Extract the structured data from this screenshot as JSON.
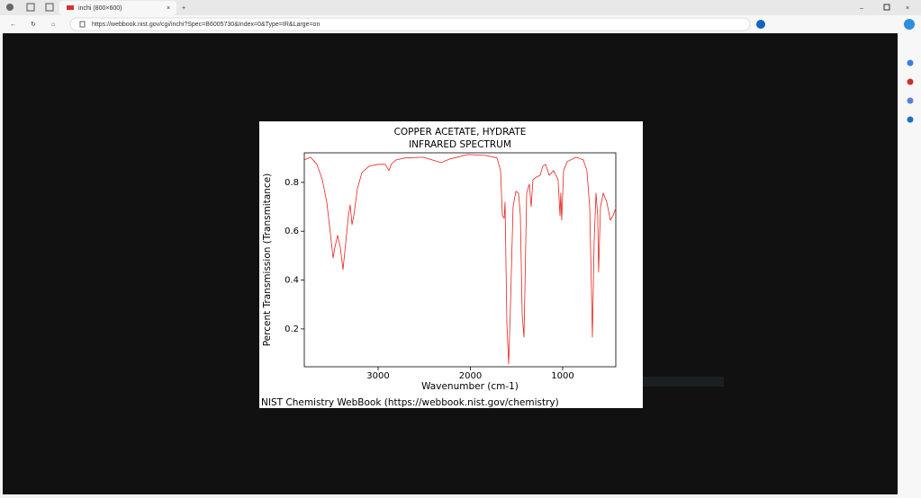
{
  "browser": {
    "tab_title": "inchi (800×600)",
    "url": "https://webbook.nist.gov/cgi/inchi?Spec=B6005730&Index=0&Type=IR&Large=on"
  },
  "chart_data": {
    "type": "line",
    "title": "COPPER ACETATE, HYDRATE",
    "subtitle": "INFRARED SPECTRUM",
    "x_label": "Wavenumber (cm-1)",
    "y_label": "Percent Transmission (Transmitance)",
    "footer": "NIST Chemistry WebBook (https://webbook.nist.gov/chemistry)",
    "color": "#e8231f",
    "xlim": [
      3800,
      424
    ],
    "ylim": [
      0.045,
      0.921
    ],
    "xticks": [
      3000,
      2000,
      1000
    ],
    "yticks": [
      0.2,
      0.4,
      0.6,
      0.8
    ],
    "x": [
      3800,
      3732,
      3663,
      3605,
      3556,
      3517,
      3488,
      3468,
      3439,
      3410,
      3380,
      3351,
      3322,
      3302,
      3283,
      3263,
      3224,
      3176,
      3098,
      3000,
      2922,
      2883,
      2854,
      2805,
      2707,
      2512,
      2317,
      2220,
      2024,
      1829,
      1712,
      1673,
      1653,
      1634,
      1624,
      1605,
      1585,
      1566,
      1537,
      1507,
      1478,
      1458,
      1439,
      1419,
      1410,
      1390,
      1361,
      1341,
      1322,
      1283,
      1244,
      1215,
      1185,
      1146,
      1098,
      1049,
      1029,
      1020,
      1010,
      990,
      951,
      854,
      776,
      737,
      707,
      688,
      678,
      659,
      639,
      620,
      610,
      590,
      561,
      522,
      483,
      454,
      424
    ],
    "values": [
      0.892,
      0.903,
      0.874,
      0.811,
      0.719,
      0.59,
      0.49,
      0.534,
      0.583,
      0.534,
      0.443,
      0.553,
      0.664,
      0.708,
      0.627,
      0.664,
      0.774,
      0.84,
      0.866,
      0.874,
      0.874,
      0.848,
      0.877,
      0.892,
      0.9,
      0.903,
      0.881,
      0.896,
      0.914,
      0.91,
      0.9,
      0.848,
      0.664,
      0.653,
      0.719,
      0.222,
      0.056,
      0.295,
      0.7,
      0.763,
      0.756,
      0.664,
      0.259,
      0.166,
      0.332,
      0.756,
      0.793,
      0.7,
      0.811,
      0.822,
      0.829,
      0.866,
      0.874,
      0.829,
      0.848,
      0.811,
      0.664,
      0.756,
      0.645,
      0.848,
      0.885,
      0.903,
      0.892,
      0.848,
      0.7,
      0.369,
      0.166,
      0.553,
      0.756,
      0.664,
      0.432,
      0.7,
      0.756,
      0.719,
      0.645,
      0.664,
      0.693
    ]
  }
}
